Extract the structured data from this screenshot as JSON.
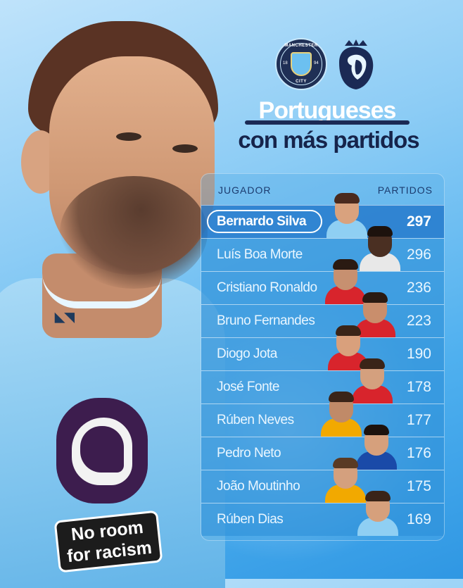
{
  "crests": {
    "city": {
      "top_text": "MANCHESTER",
      "bottom_text": "CITY",
      "year_left": "18",
      "year_right": "94"
    }
  },
  "title": {
    "line1": "Portugueses",
    "line2": "con más partidos"
  },
  "table": {
    "header_player": "JUGADOR",
    "header_games": "PARTIDOS",
    "rows": [
      {
        "name": "Bernardo Silva",
        "games": "297"
      },
      {
        "name": "Luís Boa Morte",
        "games": "296"
      },
      {
        "name": "Cristiano Ronaldo",
        "games": "236"
      },
      {
        "name": "Bruno Fernandes",
        "games": "223"
      },
      {
        "name": "Diogo Jota",
        "games": "190"
      },
      {
        "name": "José Fonte",
        "games": "178"
      },
      {
        "name": "Rúben Neves",
        "games": "177"
      },
      {
        "name": "Pedro Neto",
        "games": "176"
      },
      {
        "name": "João Moutinho",
        "games": "175"
      },
      {
        "name": "Rúben Dias",
        "games": "169"
      }
    ]
  },
  "sleeve_patch": {
    "line1": "No room",
    "line2": "for racism"
  },
  "colors": {
    "navy": "#16244b",
    "sky": "#6cc0f0",
    "highlight_row": "#1e73c8"
  },
  "icons": [
    "manchester-city-crest-icon",
    "premier-league-lion-icon",
    "puma-logo-icon"
  ]
}
